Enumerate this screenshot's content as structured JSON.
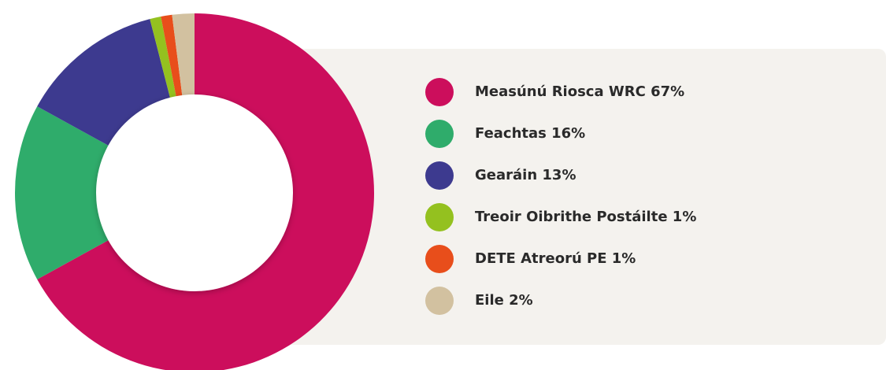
{
  "chart_data": {
    "type": "donut",
    "categories": [
      "Measúnú Riosca WRC 67%",
      "Feachtas 16%",
      "Gearáin 13%",
      "Treoir Oibrithe Postáilte 1%",
      "DETE Atreorú PE 1%",
      "Eile 2%"
    ],
    "values": [
      67,
      16,
      13,
      1,
      1,
      2
    ],
    "colors": [
      "#cc0e5c",
      "#2fac6b",
      "#3d3a8f",
      "#94c11f",
      "#e84e1b",
      "#d2c1a0"
    ]
  }
}
